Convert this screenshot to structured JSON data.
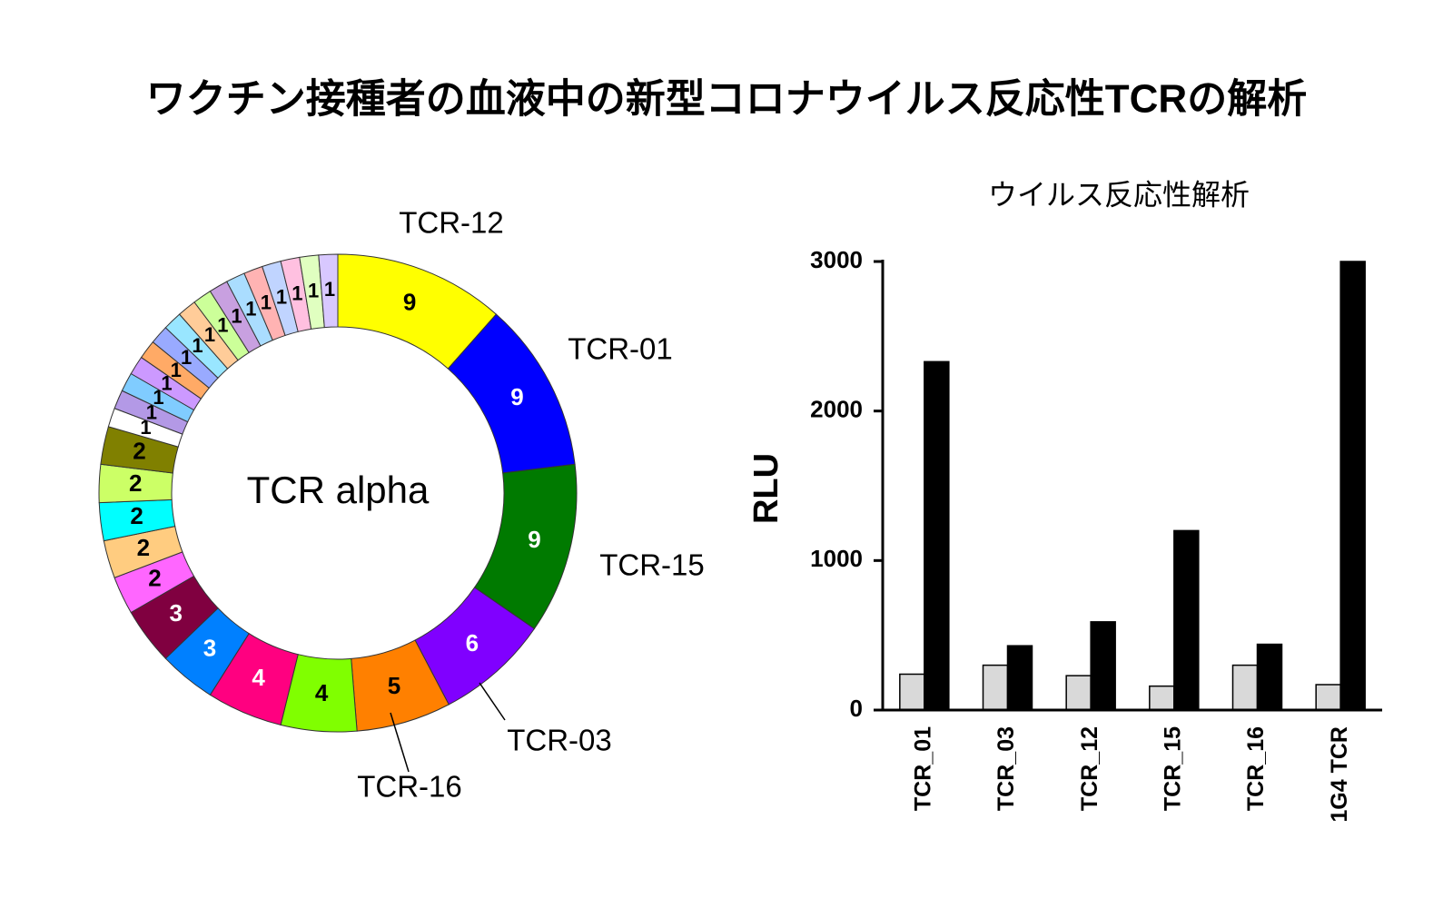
{
  "title": "ワクチン接種者の血液中の新型コロナウイルス反応性TCRの解析",
  "chart_data": [
    {
      "type": "donut",
      "center_label": "TCR alpha",
      "categories": [
        "TCR-12",
        "TCR-01",
        "TCR-15",
        "TCR-03",
        "TCR-16",
        null,
        null,
        null,
        null,
        null,
        null,
        null,
        null,
        null,
        null,
        null,
        null,
        null,
        null,
        null,
        null,
        null,
        null,
        null,
        null,
        null,
        null,
        null,
        null,
        null
      ],
      "values": [
        9,
        9,
        9,
        6,
        5,
        4,
        4,
        3,
        3,
        2,
        2,
        2,
        2,
        2,
        1,
        1,
        1,
        1,
        1,
        1,
        1,
        1,
        1,
        1,
        1,
        1,
        1,
        1,
        1,
        1
      ],
      "colors": [
        "#ffff00",
        "#0000ff",
        "#007a00",
        "#8000ff",
        "#ff8000",
        "#80ff00",
        "#ff0080",
        "#0080ff",
        "#800040",
        "#ff66ff",
        "#ffcc80",
        "#00ffff",
        "#ccff66",
        "#808000",
        "#ffffff",
        "#b399e6",
        "#80ccff",
        "#cc99ff",
        "#ffaa66",
        "#99aaff",
        "#99e6ff",
        "#ffcc99",
        "#ccff99",
        "#c8a0e0",
        "#aaddff",
        "#ffb3b3",
        "#c0d4ff",
        "#ffc0e0",
        "#e0ffc0",
        "#d8c8ff"
      ]
    },
    {
      "type": "bar",
      "title": "ウイルス反応性解析",
      "ylabel": "RLU",
      "categories": [
        "TCR_01",
        "TCR_03",
        "TCR_12",
        "TCR_15",
        "TCR_16",
        "1G4 TCR"
      ],
      "series": [
        {
          "color": "#d9d9d9",
          "values": [
            240,
            300,
            230,
            160,
            300,
            170
          ]
        },
        {
          "color": "#000000",
          "values": [
            2330,
            430,
            590,
            1200,
            440,
            3000
          ]
        }
      ],
      "ylim": [
        0,
        3000
      ],
      "yticks": [
        0,
        1000,
        2000,
        3000
      ]
    }
  ]
}
